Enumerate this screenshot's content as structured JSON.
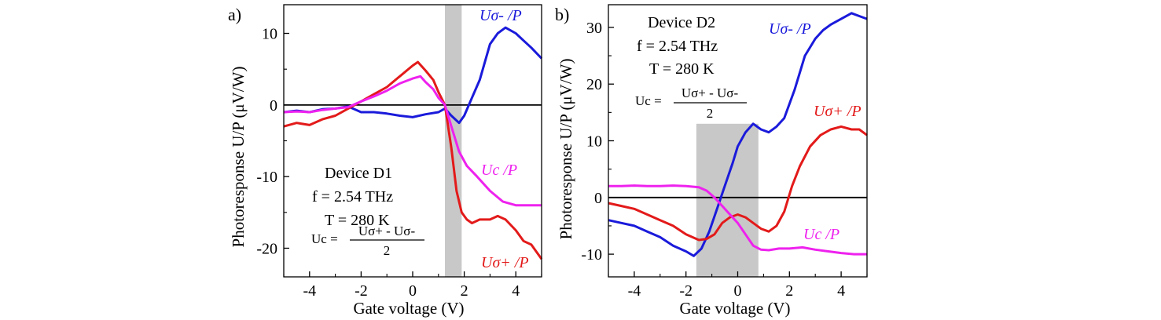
{
  "chart_data": [
    {
      "type": "line",
      "panel_label": "a)",
      "xlabel": "Gate voltage (V)",
      "ylabel": "Photoresponse U/P (μV/W)",
      "xlim": [
        -5,
        5
      ],
      "ylim": [
        -24,
        14
      ],
      "xticks": [
        -4,
        -2,
        0,
        2,
        4
      ],
      "yticks": [
        -20,
        -10,
        0,
        10
      ],
      "shaded_region": [
        1.25,
        1.9
      ],
      "zero_line": true,
      "annotations": {
        "device": "Device D1",
        "frequency": "f = 2.54 THz",
        "temperature": "T = 280 K",
        "formula_lhs": "Uc =",
        "formula_num": "Uσ+ - Uσ-",
        "formula_den": "2"
      },
      "series": [
        {
          "name": "Uσ- /P",
          "color": "#1a1adb",
          "x": [
            -5,
            -4.5,
            -4,
            -3.5,
            -3,
            -2.5,
            -2,
            -1.5,
            -1,
            -0.5,
            0,
            0.5,
            1,
            1.25,
            1.5,
            1.8,
            2,
            2.3,
            2.6,
            3,
            3.3,
            3.6,
            4,
            4.3,
            4.6,
            5
          ],
          "y": [
            -1,
            -0.8,
            -1,
            -0.6,
            -0.5,
            -0.2,
            -1,
            -1,
            -1.2,
            -1.5,
            -1.7,
            -1.3,
            -1,
            -0.5,
            -1.5,
            -2.5,
            -1.5,
            1,
            3.5,
            8.5,
            10,
            10.8,
            10,
            9,
            8,
            6.5
          ]
        },
        {
          "name": "Uσ+ /P",
          "color": "#e31a1a",
          "x": [
            -5,
            -4.5,
            -4,
            -3.5,
            -3,
            -2.5,
            -2,
            -1.5,
            -1,
            -0.5,
            0,
            0.2,
            0.5,
            0.8,
            1,
            1.25,
            1.5,
            1.7,
            1.9,
            2.1,
            2.3,
            2.6,
            3,
            3.3,
            3.6,
            4,
            4.3,
            4.6,
            5
          ],
          "y": [
            -3,
            -2.5,
            -2.8,
            -2,
            -1.5,
            -0.5,
            0.5,
            1.5,
            2.5,
            4,
            5.5,
            6,
            4.8,
            3.5,
            1.8,
            0,
            -6,
            -12,
            -15,
            -16,
            -16.5,
            -16,
            -16,
            -15.5,
            -16,
            -17.5,
            -19,
            -19.5,
            -21.5
          ]
        },
        {
          "name": "Uc /P",
          "color": "#ee22ee",
          "x": [
            -5,
            -4.5,
            -4,
            -3.5,
            -3,
            -2.5,
            -2,
            -1.5,
            -1,
            -0.5,
            0,
            0.3,
            0.5,
            0.8,
            1,
            1.25,
            1.5,
            1.8,
            2.1,
            2.5,
            3,
            3.5,
            4,
            4.5,
            5
          ],
          "y": [
            -1,
            -0.9,
            -1,
            -0.7,
            -0.5,
            -0.3,
            0.5,
            1.2,
            2,
            3,
            3.7,
            4,
            3.2,
            2.2,
            1,
            0,
            -3,
            -6.5,
            -8.5,
            -10,
            -12,
            -13.5,
            -14,
            -14,
            -14
          ]
        }
      ],
      "labels": {
        "s_minus": "Uσ- /P",
        "s_plus": "Uσ+ /P",
        "s_c": "Uc /P"
      }
    },
    {
      "type": "line",
      "panel_label": "b)",
      "xlabel": "Gate voltage (V)",
      "ylabel": "Photoresponse U/P (μV/W)",
      "xlim": [
        -5,
        5
      ],
      "ylim": [
        -14,
        34
      ],
      "xticks": [
        -4,
        -2,
        0,
        2,
        4
      ],
      "yticks": [
        -10,
        0,
        10,
        20,
        30
      ],
      "shaded_region": [
        -1.6,
        0.8
      ],
      "shaded_ymax": 13,
      "zero_line": true,
      "annotations": {
        "device": "Device D2",
        "frequency": "f = 2.54 THz",
        "temperature": "T = 280 K",
        "formula_lhs": "Uc =",
        "formula_num": "Uσ+ - Uσ-",
        "formula_den": "2"
      },
      "series": [
        {
          "name": "Uσ- /P",
          "color": "#1a1adb",
          "x": [
            -5,
            -4.5,
            -4,
            -3.5,
            -3,
            -2.5,
            -2,
            -1.7,
            -1.4,
            -1.1,
            -0.8,
            -0.5,
            -0.2,
            0,
            0.3,
            0.6,
            0.9,
            1.2,
            1.5,
            1.8,
            2.2,
            2.6,
            3,
            3.3,
            3.6,
            4,
            4.4,
            4.7,
            5
          ],
          "y": [
            -4,
            -4.5,
            -5,
            -6,
            -7,
            -8.5,
            -9.5,
            -10.3,
            -9,
            -6,
            -2,
            2,
            6,
            9,
            11.5,
            13,
            12,
            11.5,
            12.5,
            14,
            19,
            25,
            28,
            29.5,
            30.5,
            31.5,
            32.5,
            32,
            31.5
          ]
        },
        {
          "name": "Uσ+ /P",
          "color": "#e31a1a",
          "x": [
            -5,
            -4.5,
            -4,
            -3.5,
            -3,
            -2.5,
            -2,
            -1.5,
            -1.2,
            -0.9,
            -0.6,
            -0.3,
            0,
            0.3,
            0.6,
            0.9,
            1.2,
            1.5,
            1.8,
            2.1,
            2.4,
            2.8,
            3.2,
            3.6,
            4,
            4.4,
            4.7,
            5
          ],
          "y": [
            -1,
            -1.5,
            -2,
            -3,
            -4,
            -5,
            -6.5,
            -7.5,
            -7.3,
            -6.5,
            -4.5,
            -3.5,
            -3,
            -3.5,
            -4.5,
            -5.5,
            -6,
            -5,
            -2.5,
            2,
            5.5,
            9,
            11,
            12,
            12.5,
            12,
            12,
            11
          ]
        },
        {
          "name": "Uc /P",
          "color": "#ee22ee",
          "x": [
            -5,
            -4.5,
            -4,
            -3.5,
            -3,
            -2.5,
            -2,
            -1.5,
            -1.2,
            -0.9,
            -0.6,
            -0.3,
            0,
            0.3,
            0.6,
            0.9,
            1.2,
            1.6,
            2,
            2.5,
            3,
            3.5,
            4,
            4.5,
            5
          ],
          "y": [
            2,
            2,
            2.1,
            2,
            2,
            2.1,
            2,
            1.8,
            1.2,
            0,
            -1.5,
            -3,
            -4.5,
            -6.5,
            -8.5,
            -9.2,
            -9.3,
            -9,
            -9,
            -8.8,
            -9.2,
            -9.5,
            -9.8,
            -10,
            -10
          ]
        }
      ],
      "labels": {
        "s_minus": "Uσ- /P",
        "s_plus": "Uσ+ /P",
        "s_c": "Uc /P"
      }
    }
  ]
}
